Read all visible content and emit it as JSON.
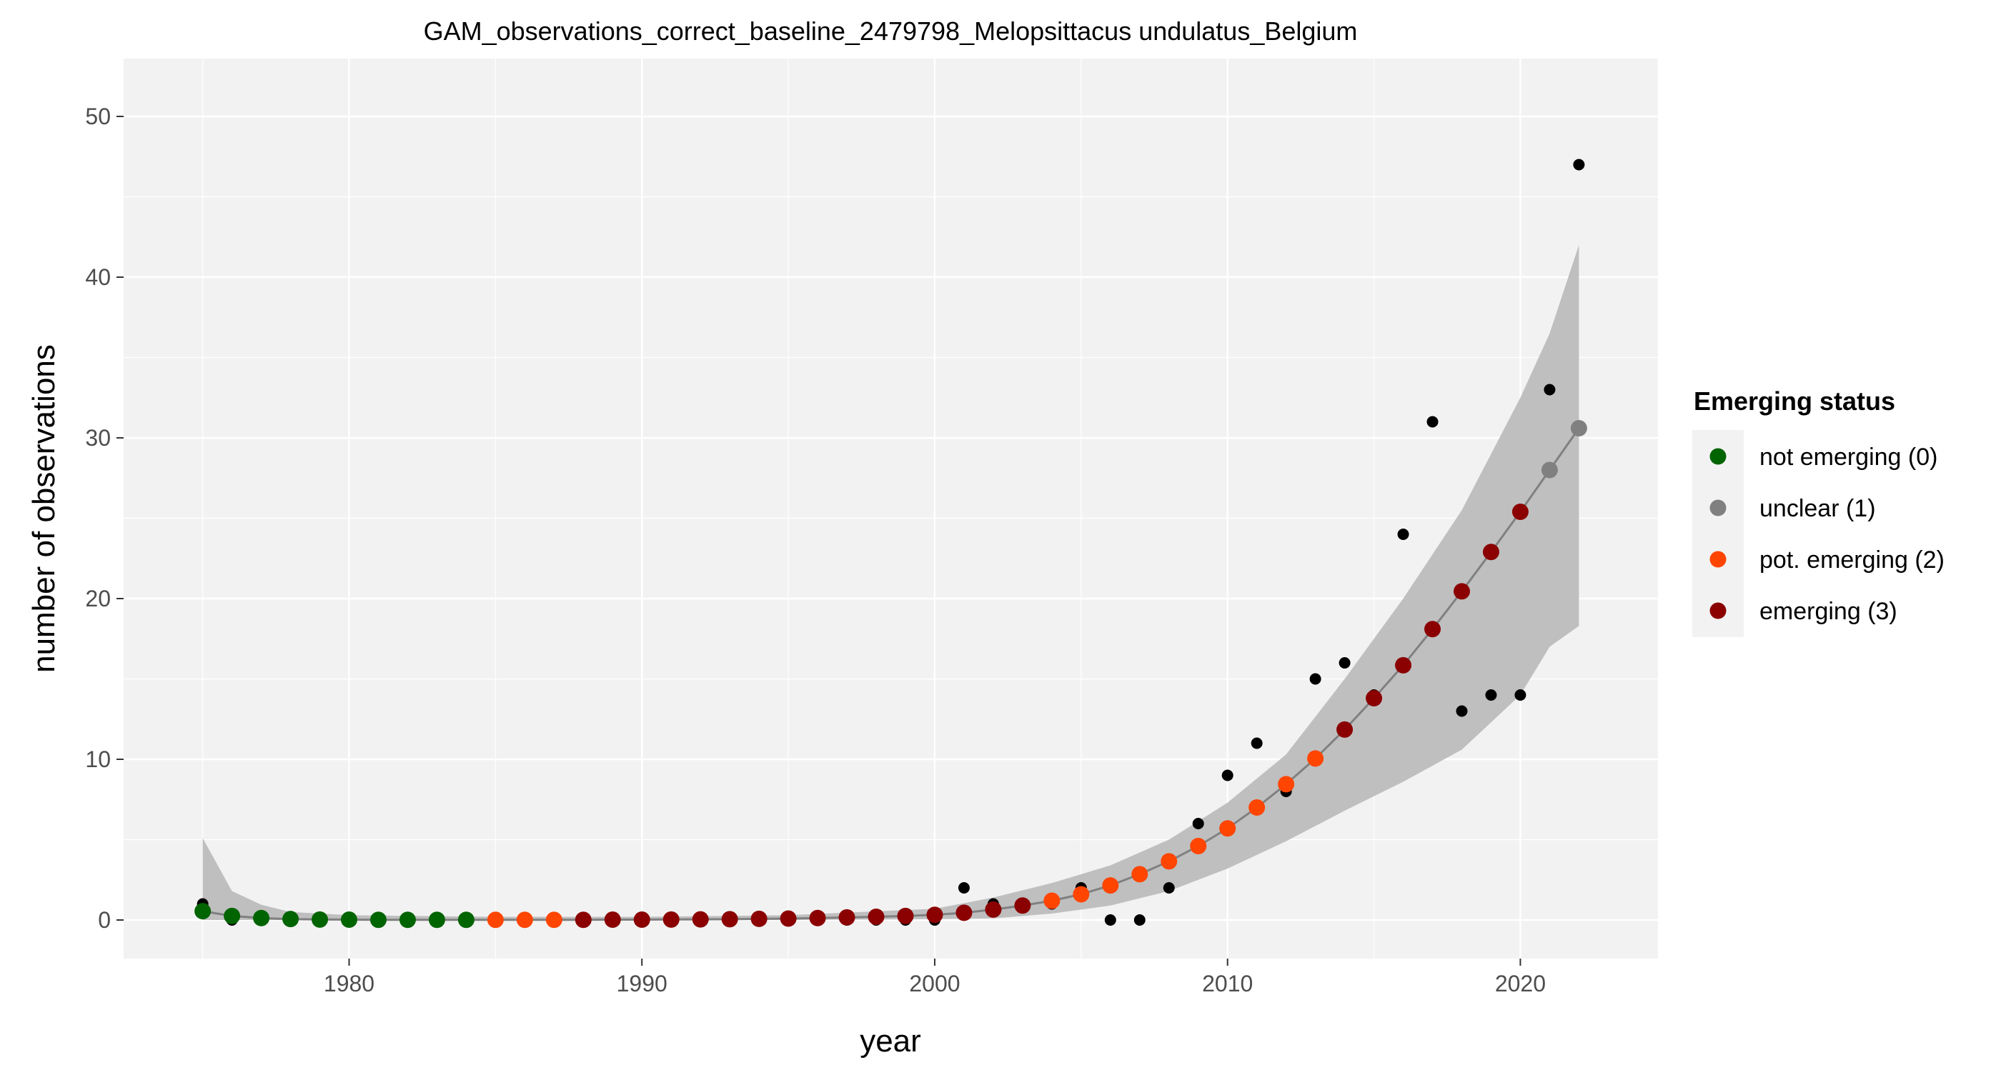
{
  "chart_data": {
    "type": "scatter",
    "title": "GAM_observations_correct_baseline_2479798_Melopsittacus undulatus_Belgium",
    "xlabel": "year",
    "ylabel": "number of observations",
    "xlim": [
      1972.3,
      2024.7
    ],
    "ylim": [
      -2.4,
      53.6
    ],
    "x_ticks": [
      1980,
      1990,
      2000,
      2010,
      2020
    ],
    "y_ticks": [
      0,
      10,
      20,
      30,
      40,
      50
    ],
    "grid": true,
    "panel_background": "#f2f2f2",
    "legend": {
      "title": "Emerging status",
      "position": "right",
      "entries": [
        {
          "label": "not emerging (0)",
          "color": "#006400"
        },
        {
          "label": "unclear (1)",
          "color": "#808080"
        },
        {
          "label": "pot. emerging (2)",
          "color": "#ff4500"
        },
        {
          "label": "emerging (3)",
          "color": "#8b0000"
        }
      ]
    },
    "observed": {
      "x": [
        1975,
        1976,
        1977,
        1978,
        1979,
        1980,
        1981,
        1982,
        1983,
        1984,
        1985,
        1986,
        1987,
        1988,
        1989,
        1990,
        1991,
        1992,
        1993,
        1994,
        1995,
        1996,
        1997,
        1998,
        1999,
        2000,
        2001,
        2002,
        2003,
        2004,
        2005,
        2006,
        2007,
        2008,
        2009,
        2010,
        2011,
        2012,
        2013,
        2014,
        2015,
        2016,
        2017,
        2018,
        2019,
        2020,
        2021,
        2022
      ],
      "y": [
        1,
        0,
        0,
        0,
        0,
        0,
        0,
        0,
        0,
        0,
        0,
        0,
        0,
        0,
        0,
        0,
        0,
        0,
        0,
        0,
        0,
        0,
        0,
        0,
        0,
        0,
        2,
        1,
        1,
        1,
        2,
        0,
        0,
        2,
        6,
        9,
        11,
        8,
        15,
        16,
        14,
        24,
        31,
        13,
        14,
        14,
        33,
        47
      ],
      "color": "#000000"
    },
    "fitted": {
      "x": [
        1975,
        1976,
        1977,
        1978,
        1979,
        1980,
        1981,
        1982,
        1983,
        1984,
        1985,
        1986,
        1987,
        1988,
        1989,
        1990,
        1991,
        1992,
        1993,
        1994,
        1995,
        1996,
        1997,
        1998,
        1999,
        2000,
        2001,
        2002,
        2003,
        2004,
        2005,
        2006,
        2007,
        2008,
        2009,
        2010,
        2011,
        2012,
        2013,
        2014,
        2015,
        2016,
        2017,
        2018,
        2019,
        2020,
        2021,
        2022
      ],
      "y": [
        0.55,
        0.25,
        0.12,
        0.06,
        0.03,
        0.02,
        0.01,
        0.01,
        0.01,
        0.01,
        0.01,
        0.01,
        0.01,
        0.01,
        0.02,
        0.02,
        0.03,
        0.04,
        0.05,
        0.07,
        0.09,
        0.12,
        0.16,
        0.2,
        0.25,
        0.32,
        0.45,
        0.65,
        0.9,
        1.2,
        1.6,
        2.15,
        2.85,
        3.65,
        4.6,
        5.7,
        7.0,
        8.45,
        10.05,
        11.85,
        13.8,
        15.85,
        18.1,
        20.45,
        22.9,
        25.4,
        28.0,
        30.6
      ],
      "status": [
        0,
        0,
        0,
        0,
        0,
        0,
        0,
        0,
        0,
        0,
        2,
        2,
        2,
        3,
        3,
        3,
        3,
        3,
        3,
        3,
        3,
        3,
        3,
        3,
        3,
        3,
        3,
        3,
        3,
        2,
        2,
        2,
        2,
        2,
        2,
        2,
        2,
        2,
        2,
        3,
        3,
        3,
        3,
        3,
        3,
        3,
        1,
        1
      ],
      "line_color": "#808080"
    },
    "confidence_band": {
      "x": [
        1975,
        1976,
        1977,
        1978,
        1980,
        1985,
        1990,
        1995,
        2000,
        2002,
        2004,
        2006,
        2008,
        2010,
        2012,
        2014,
        2016,
        2018,
        2019,
        2020,
        2021,
        2022
      ],
      "upper": [
        5.1,
        1.8,
        0.95,
        0.5,
        0.3,
        0.2,
        0.2,
        0.3,
        0.7,
        1.4,
        2.3,
        3.4,
        5.0,
        7.3,
        10.3,
        15.0,
        20.0,
        25.5,
        29.0,
        32.5,
        36.5,
        42.0
      ],
      "lower": [
        0,
        0,
        0,
        0,
        0,
        0,
        0,
        0,
        0.05,
        0.1,
        0.4,
        0.9,
        1.8,
        3.2,
        4.9,
        6.8,
        8.6,
        10.6,
        12.3,
        14.0,
        17.0,
        18.3
      ],
      "color": "#bfbfbf"
    }
  }
}
